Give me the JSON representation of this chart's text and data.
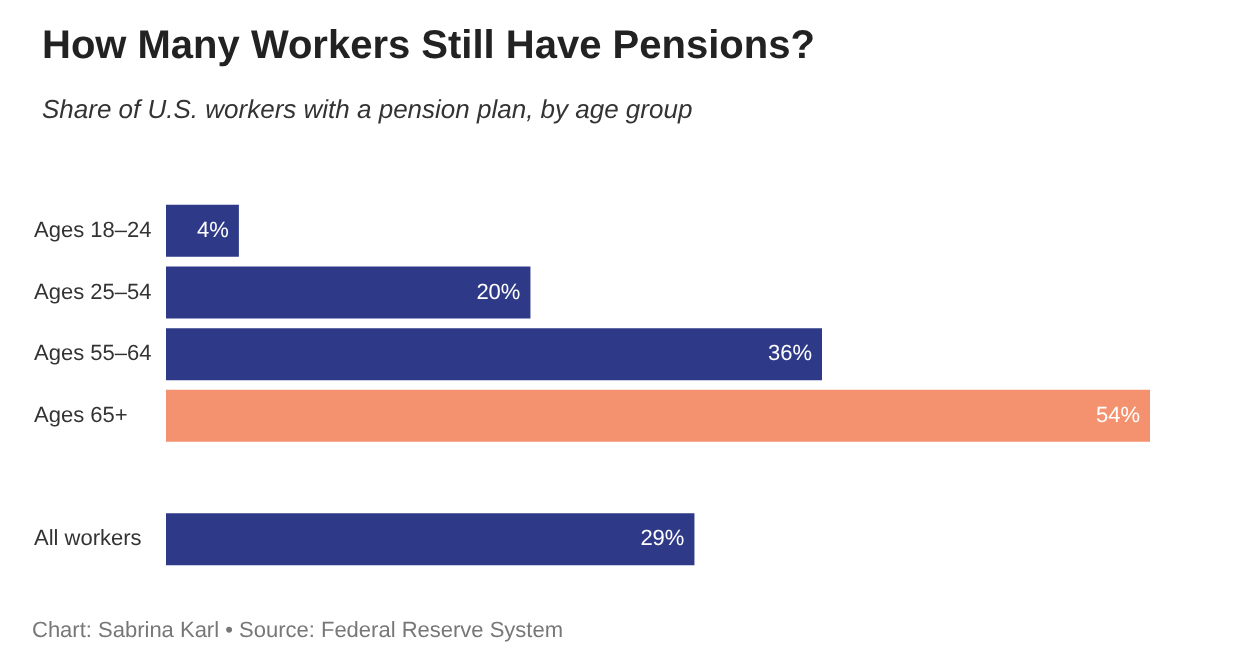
{
  "chart_data": {
    "type": "bar",
    "orientation": "horizontal",
    "title": "How Many Workers Still Have Pensions?",
    "subtitle": "Share of U.S. workers with a pension plan, by age group",
    "categories": [
      "Ages 18–24",
      "Ages 25–54",
      "Ages 55–64",
      "Ages 65+",
      null,
      "All workers"
    ],
    "values": [
      4,
      20,
      36,
      54,
      null,
      29
    ],
    "colors": [
      "#2e3a87",
      "#2e3a87",
      "#2e3a87",
      "#f4926f",
      null,
      "#2e3a87"
    ],
    "value_labels": [
      "4%",
      "20%",
      "36%",
      "54%",
      null,
      "29%"
    ],
    "annotations": [
      "Chart: Sabrina Karl • Source: Federal Reserve System"
    ]
  }
}
